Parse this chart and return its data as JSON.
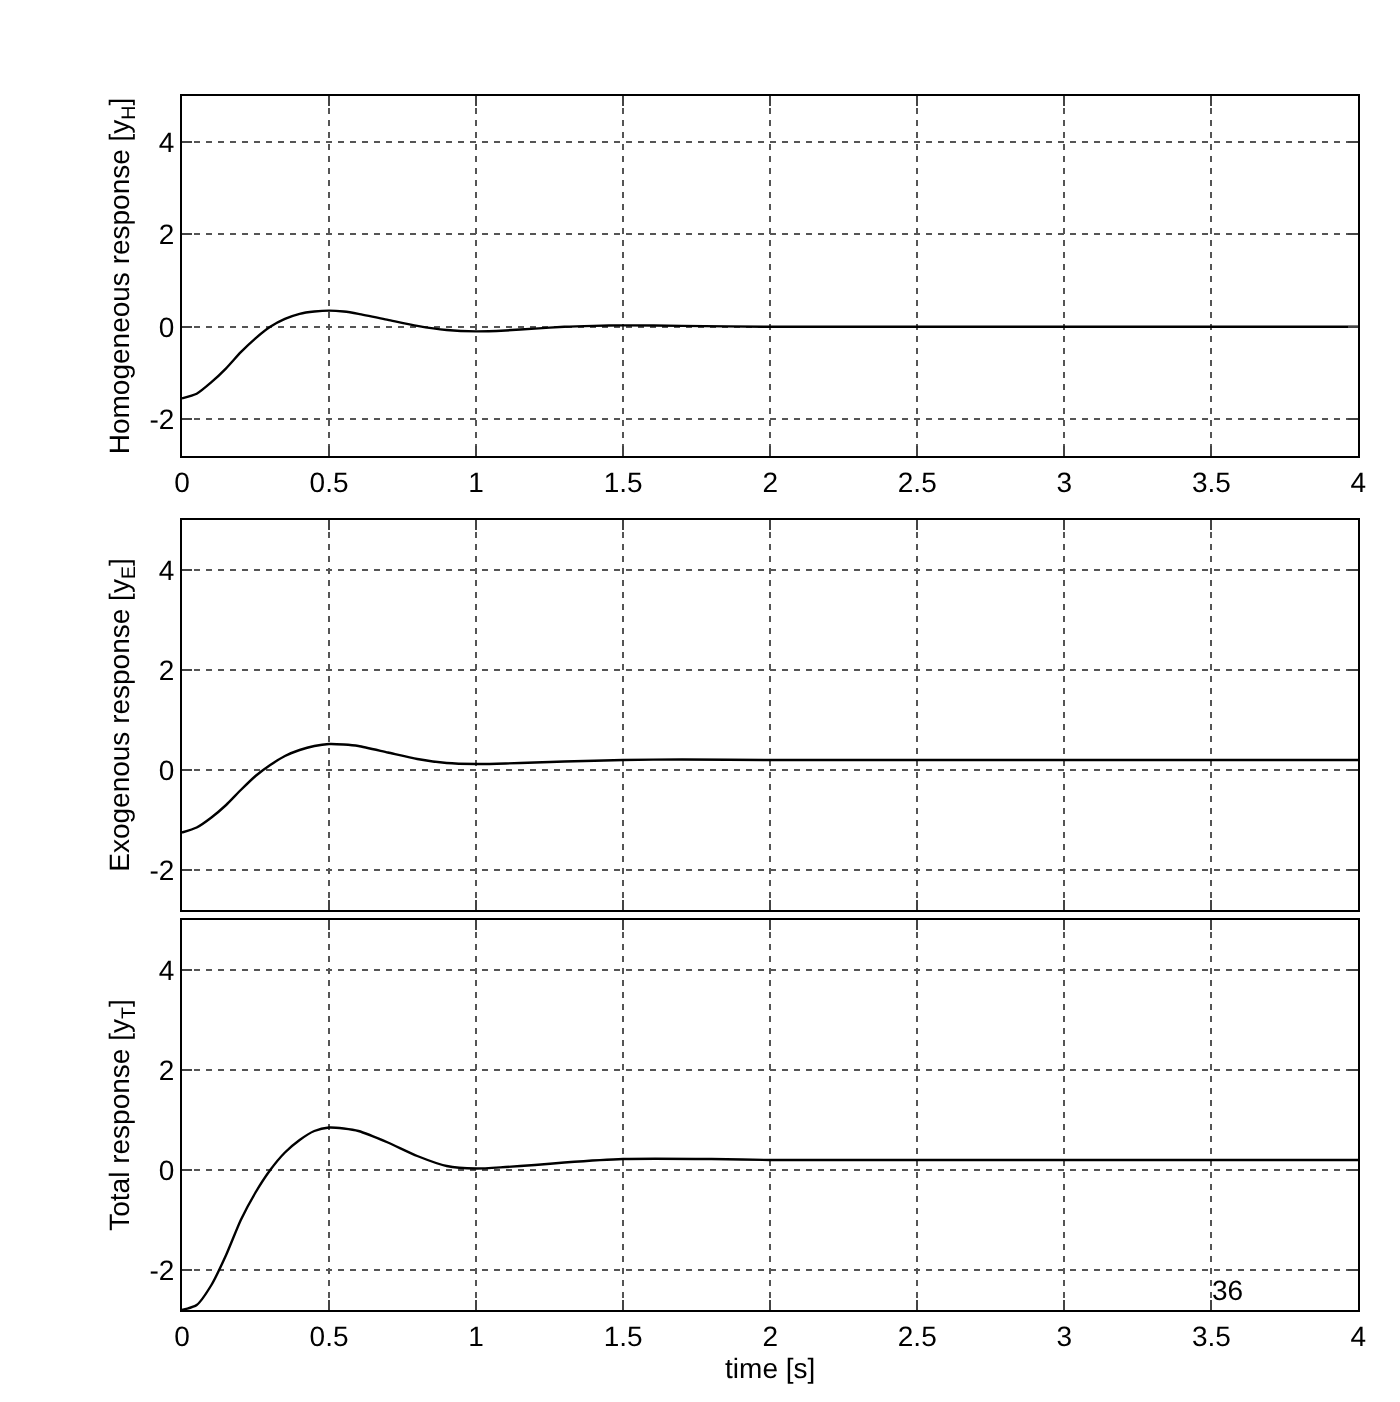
{
  "chart_data": [
    {
      "type": "line",
      "ylabel": "Homogeneous response [y$_{H}$]",
      "xlim": [
        0,
        4
      ],
      "ylim": [
        -2.8,
        5
      ],
      "xticks": [
        0,
        0.5,
        1,
        1.5,
        2,
        2.5,
        3,
        3.5,
        4
      ],
      "yticks": [
        -2,
        0,
        2,
        4
      ],
      "grid": true,
      "line_style": "solid",
      "x": [
        0,
        0.05,
        0.1,
        0.15,
        0.2,
        0.25,
        0.3,
        0.35,
        0.4,
        0.45,
        0.5,
        0.55,
        0.6,
        0.7,
        0.8,
        0.9,
        1.0,
        1.1,
        1.2,
        1.3,
        1.4,
        1.5,
        1.7,
        2.0,
        2.5,
        3.0,
        3.5,
        4.0
      ],
      "series": [
        {
          "color": "#000000",
          "values": [
            -1.55,
            -1.45,
            -1.2,
            -0.9,
            -0.55,
            -0.25,
            0.0,
            0.17,
            0.28,
            0.33,
            0.35,
            0.33,
            0.28,
            0.15,
            0.02,
            -0.07,
            -0.1,
            -0.08,
            -0.04,
            0.0,
            0.02,
            0.03,
            0.02,
            0.0,
            0.0,
            0.0,
            0.0,
            0.0
          ]
        }
      ]
    },
    {
      "type": "line",
      "ylabel": "Exogenous response [y$_{E}$]",
      "xlim": [
        0,
        4
      ],
      "ylim": [
        -2.8,
        5
      ],
      "xticks": [
        0,
        0.5,
        1,
        1.5,
        2,
        2.5,
        3,
        3.5,
        4
      ],
      "yticks": [
        -2,
        0,
        2,
        4
      ],
      "grid": true,
      "line_style": "solid",
      "tick_labels": "y",
      "x": [
        0,
        0.05,
        0.1,
        0.15,
        0.2,
        0.25,
        0.3,
        0.35,
        0.4,
        0.45,
        0.5,
        0.55,
        0.6,
        0.7,
        0.8,
        0.9,
        1.0,
        1.1,
        1.2,
        1.3,
        1.5,
        1.7,
        2.0,
        2.5,
        3.0,
        3.5,
        4.0
      ],
      "series": [
        {
          "color": "#000000",
          "values": [
            -1.25,
            -1.15,
            -0.95,
            -0.7,
            -0.4,
            -0.12,
            0.1,
            0.28,
            0.4,
            0.48,
            0.52,
            0.51,
            0.48,
            0.35,
            0.22,
            0.14,
            0.12,
            0.13,
            0.15,
            0.17,
            0.2,
            0.21,
            0.2,
            0.2,
            0.2,
            0.2,
            0.2
          ]
        }
      ]
    },
    {
      "type": "line",
      "ylabel": "Total response [y$_{T}$]",
      "xlabel": "time [s]",
      "xlim": [
        0,
        4
      ],
      "ylim": [
        -2.8,
        5
      ],
      "xticks": [
        0,
        0.5,
        1,
        1.5,
        2,
        2.5,
        3,
        3.5,
        4
      ],
      "yticks": [
        -2,
        0,
        2,
        4
      ],
      "grid": true,
      "line_style": "solid",
      "annotations": [
        "36"
      ],
      "x": [
        0,
        0.05,
        0.1,
        0.15,
        0.2,
        0.25,
        0.3,
        0.35,
        0.4,
        0.45,
        0.5,
        0.55,
        0.6,
        0.7,
        0.8,
        0.9,
        1.0,
        1.1,
        1.2,
        1.3,
        1.5,
        1.8,
        2.0,
        2.5,
        3.0,
        3.5,
        4.0
      ],
      "series": [
        {
          "color": "#000000",
          "values": [
            -2.8,
            -2.7,
            -2.3,
            -1.7,
            -1.0,
            -0.45,
            0.0,
            0.35,
            0.6,
            0.78,
            0.85,
            0.83,
            0.78,
            0.55,
            0.28,
            0.08,
            0.03,
            0.06,
            0.1,
            0.15,
            0.22,
            0.22,
            0.2,
            0.2,
            0.2,
            0.2,
            0.2
          ]
        }
      ]
    }
  ]
}
